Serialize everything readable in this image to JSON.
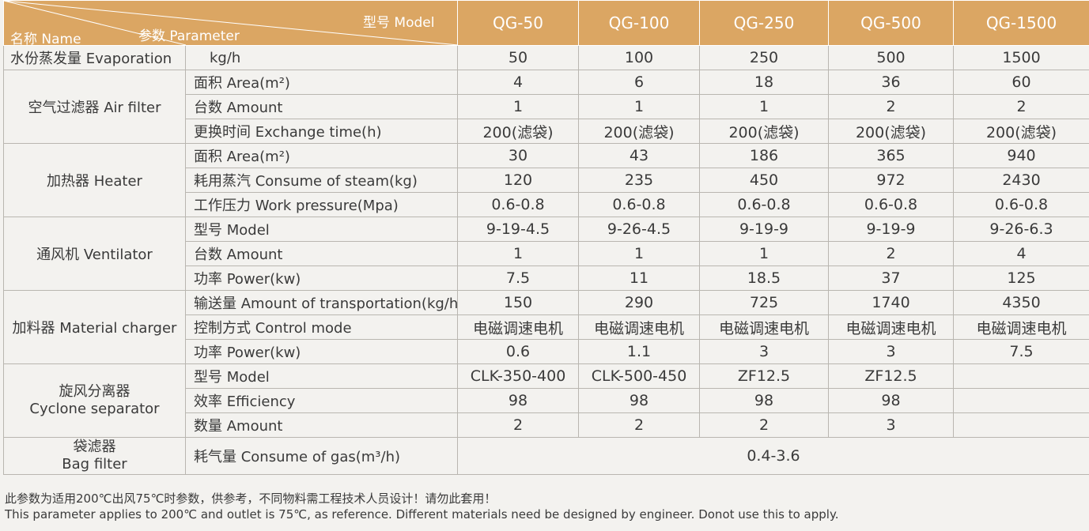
{
  "header": {
    "name_label": "名称 Name",
    "param_label": "参数 Parameter",
    "model_label": "型号 Model",
    "models": [
      "QG-50",
      "QG-100",
      "QG-250",
      "QG-500",
      "QG-1500"
    ]
  },
  "evaporation": {
    "name": "水份蒸发量 Evaporation",
    "unit": "kg/h",
    "values": [
      "50",
      "100",
      "250",
      "500",
      "1500"
    ]
  },
  "air_filter": {
    "name": "空气过滤器 Air filter",
    "rows": [
      {
        "param": "面积 Area(m²)",
        "values": [
          "4",
          "6",
          "18",
          "36",
          "60"
        ]
      },
      {
        "param": "台数 Amount",
        "values": [
          "1",
          "1",
          "1",
          "2",
          "2"
        ]
      },
      {
        "param": "更换时间 Exchange time(h)",
        "values": [
          "200(滤袋)",
          "200(滤袋)",
          "200(滤袋)",
          "200(滤袋)",
          "200(滤袋)"
        ]
      }
    ]
  },
  "heater": {
    "name": "加热器 Heater",
    "rows": [
      {
        "param": "面积 Area(m²)",
        "values": [
          "30",
          "43",
          "186",
          "365",
          "940"
        ]
      },
      {
        "param": "耗用蒸汽 Consume of steam(kg)",
        "values": [
          "120",
          "235",
          "450",
          "972",
          "2430"
        ]
      },
      {
        "param": "工作压力 Work pressure(Mpa)",
        "values": [
          "0.6-0.8",
          "0.6-0.8",
          "0.6-0.8",
          "0.6-0.8",
          "0.6-0.8"
        ]
      }
    ]
  },
  "ventilator": {
    "name": "通风机 Ventilator",
    "rows": [
      {
        "param": "型号 Model",
        "values": [
          "9-19-4.5",
          "9-26-4.5",
          "9-19-9",
          "9-19-9",
          "9-26-6.3"
        ]
      },
      {
        "param": "台数 Amount",
        "values": [
          "1",
          "1",
          "1",
          "2",
          "4"
        ]
      },
      {
        "param": "功率 Power(kw)",
        "values": [
          "7.5",
          "11",
          "18.5",
          "37",
          "125"
        ]
      }
    ]
  },
  "material_charger": {
    "name": "加料器 Material charger",
    "rows": [
      {
        "param": "输送量 Amount of transportation(kg/h)",
        "values": [
          "150",
          "290",
          "725",
          "1740",
          "4350"
        ]
      },
      {
        "param": "控制方式 Control mode",
        "values": [
          "电磁调速电机",
          "电磁调速电机",
          "电磁调速电机",
          "电磁调速电机",
          "电磁调速电机"
        ]
      },
      {
        "param": "功率 Power(kw)",
        "values": [
          "0.6",
          "1.1",
          "3",
          "3",
          "7.5"
        ]
      }
    ]
  },
  "cyclone": {
    "name_cn": "旋风分离器",
    "name_en": "Cyclone separator",
    "rows": [
      {
        "param": "型号 Model",
        "values": [
          "CLK-350-400",
          "CLK-500-450",
          "ZF12.5",
          "ZF12.5",
          ""
        ]
      },
      {
        "param": "效率 Efficiency",
        "values": [
          "98",
          "98",
          "98",
          "98",
          ""
        ]
      },
      {
        "param": "数量 Amount",
        "values": [
          "2",
          "2",
          "2",
          "3",
          ""
        ]
      }
    ]
  },
  "bag_filter": {
    "name_cn": "袋滤器",
    "name_en": "Bag filter",
    "param": "耗气量 Consume of gas(m³/h)",
    "value": "0.4-3.6"
  },
  "notes": {
    "cn": "此参数为适用200℃出风75℃时参数，供参考，不同物料需工程技术人员设计！请勿此套用！",
    "en": "This parameter applies to 200℃ and outlet is 75℃, as reference. Different materials need be designed by engineer. Donot use this to apply."
  },
  "colors": {
    "header_bg": "#dba663",
    "header_text": "#ffffff",
    "border": "#b9b6b0",
    "page_bg": "#f3f2ef"
  }
}
